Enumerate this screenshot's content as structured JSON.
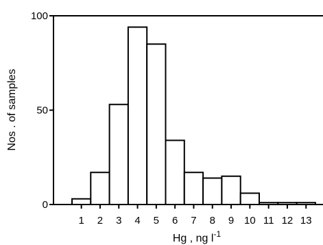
{
  "chart_data": {
    "type": "bar",
    "categories": [
      "1",
      "2",
      "3",
      "4",
      "5",
      "6",
      "7",
      "8",
      "9",
      "10",
      "11",
      "12",
      "13"
    ],
    "values": [
      3,
      17,
      53,
      94,
      85,
      34,
      17,
      14,
      15,
      6,
      1,
      1,
      1
    ],
    "xlabel": "Hg , ng l⁻¹",
    "ylabel": "Nos . of samples",
    "ylim": [
      0,
      100
    ],
    "yticks": [
      0,
      50,
      100
    ],
    "ytick_labels": [
      "0",
      "50",
      "100"
    ],
    "grid": false,
    "bar_fill": "#ffffff",
    "bar_stroke": "#000000"
  }
}
